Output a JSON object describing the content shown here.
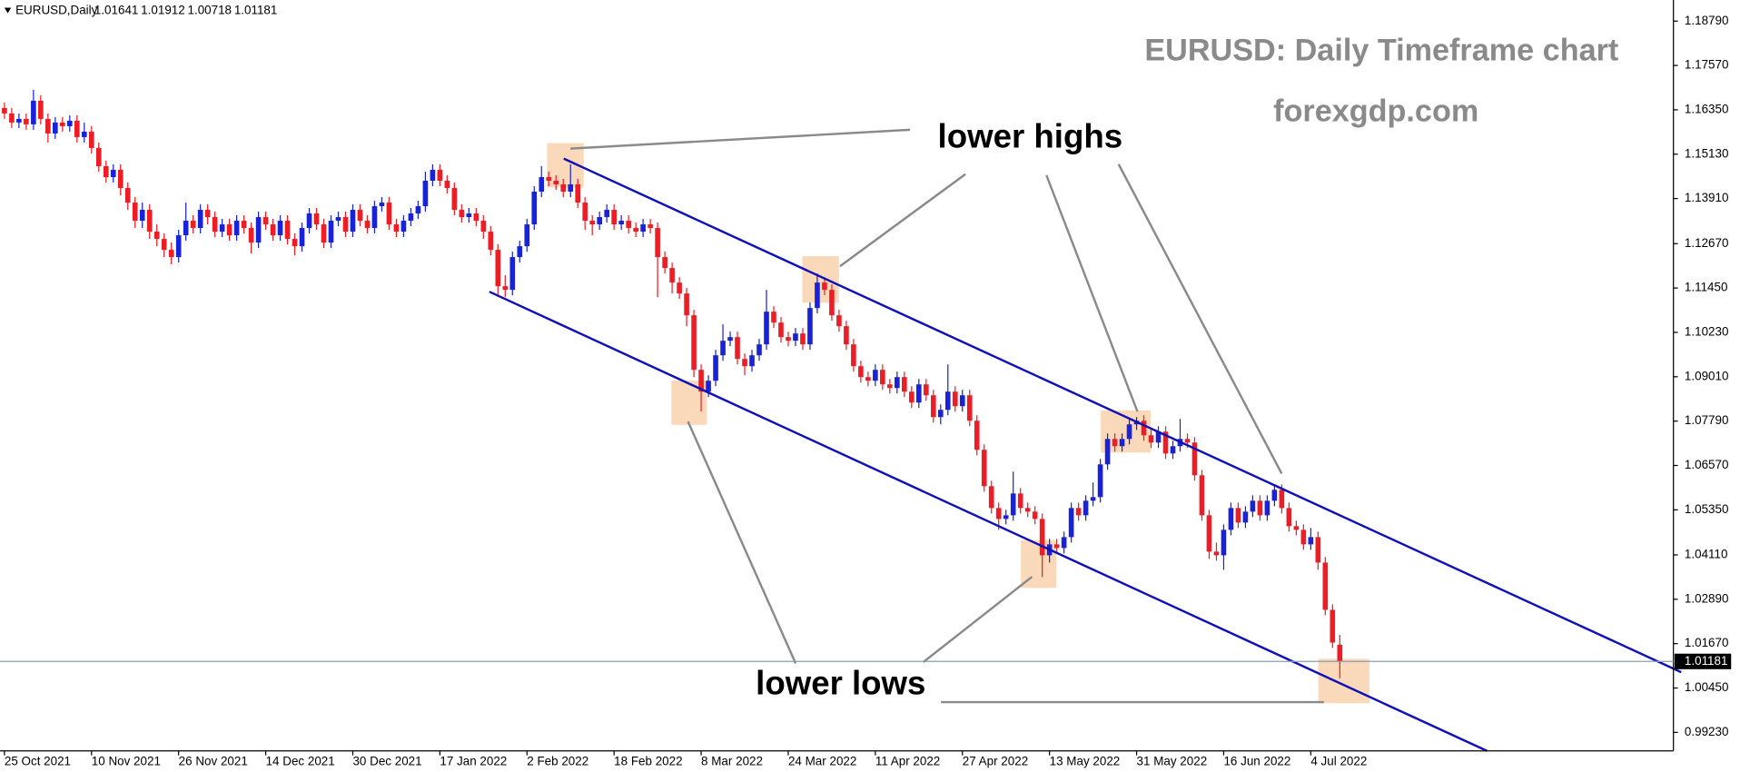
{
  "chart_data": {
    "type": "candlestick",
    "symbol": "EURUSD,Daily",
    "title": "EURUSD: Daily Timeframe chart",
    "subtitle": "forexgdp.com",
    "annotations": [
      "lower highs",
      "lower lows"
    ],
    "up_color": "#1a22d8",
    "down_color": "#ee1c25",
    "channel_color": "#1010b8",
    "ylim": [
      0.9872,
      1.1937
    ],
    "yticks": [
      {
        "value": 1.1879,
        "label": "1.18790"
      },
      {
        "value": 1.1757,
        "label": "1.17570"
      },
      {
        "value": 1.1635,
        "label": "1.16350"
      },
      {
        "value": 1.1513,
        "label": "1.15130"
      },
      {
        "value": 1.1391,
        "label": "1.13910"
      },
      {
        "value": 1.1267,
        "label": "1.12670"
      },
      {
        "value": 1.1145,
        "label": "1.11450"
      },
      {
        "value": 1.1023,
        "label": "1.10230"
      },
      {
        "value": 1.0901,
        "label": "1.09010"
      },
      {
        "value": 1.0779,
        "label": "1.07790"
      },
      {
        "value": 1.0657,
        "label": "1.06570"
      },
      {
        "value": 1.0535,
        "label": "1.05350"
      },
      {
        "value": 1.0411,
        "label": "1.04110"
      },
      {
        "value": 1.0289,
        "label": "1.02890"
      },
      {
        "value": 1.0167,
        "label": "1.01670"
      },
      {
        "value": 1.0045,
        "label": "1.00450"
      },
      {
        "value": 0.9923,
        "label": "0.99230"
      }
    ],
    "categories": [
      "25 Oct 2021",
      null,
      null,
      null,
      null,
      null,
      null,
      null,
      null,
      null,
      null,
      null,
      "10 Nov 2021",
      null,
      null,
      null,
      null,
      null,
      null,
      null,
      null,
      null,
      null,
      null,
      "26 Nov 2021",
      null,
      null,
      null,
      null,
      null,
      null,
      null,
      null,
      null,
      null,
      null,
      "14 Dec 2021",
      null,
      null,
      null,
      null,
      null,
      null,
      null,
      null,
      null,
      null,
      null,
      "30 Dec 2021",
      null,
      null,
      null,
      null,
      null,
      null,
      null,
      null,
      null,
      null,
      null,
      "17 Jan 2022",
      null,
      null,
      null,
      null,
      null,
      null,
      null,
      null,
      null,
      null,
      null,
      "2 Feb 2022",
      null,
      null,
      null,
      null,
      null,
      null,
      null,
      null,
      null,
      null,
      null,
      "18 Feb 2022",
      null,
      null,
      null,
      null,
      null,
      null,
      null,
      null,
      null,
      null,
      null,
      "8 Mar 2022",
      null,
      null,
      null,
      null,
      null,
      null,
      null,
      null,
      null,
      null,
      null,
      "24 Mar 2022",
      null,
      null,
      null,
      null,
      null,
      null,
      null,
      null,
      null,
      null,
      null,
      "11 Apr 2022",
      null,
      null,
      null,
      null,
      null,
      null,
      null,
      null,
      null,
      null,
      null,
      "27 Apr 2022",
      null,
      null,
      null,
      null,
      null,
      null,
      null,
      null,
      null,
      null,
      null,
      "13 May 2022",
      null,
      null,
      null,
      null,
      null,
      null,
      null,
      null,
      null,
      null,
      null,
      "31 May 2022",
      null,
      null,
      null,
      null,
      null,
      null,
      null,
      null,
      null,
      null,
      null,
      "16 Jun 2022",
      null,
      null,
      null,
      null,
      null,
      null,
      null,
      null,
      null,
      null,
      null,
      "4 Jul 2022",
      null,
      null,
      null,
      null
    ],
    "open": [
      1.164,
      1.1625,
      1.16,
      1.161,
      1.1595,
      1.166,
      1.161,
      1.157,
      1.16,
      1.159,
      1.1605,
      1.156,
      1.1575,
      1.153,
      1.148,
      1.145,
      1.147,
      1.142,
      1.138,
      1.133,
      1.136,
      1.13,
      1.128,
      1.125,
      1.123,
      1.129,
      1.133,
      1.131,
      1.136,
      1.134,
      1.13,
      1.132,
      1.129,
      1.133,
      1.131,
      1.127,
      1.134,
      1.132,
      1.129,
      1.133,
      1.128,
      1.126,
      1.131,
      1.135,
      1.132,
      1.127,
      1.133,
      1.134,
      1.13,
      1.136,
      1.133,
      1.131,
      1.137,
      1.138,
      1.132,
      1.13,
      1.133,
      1.135,
      1.137,
      1.144,
      1.147,
      1.144,
      1.142,
      1.136,
      1.134,
      1.135,
      1.133,
      1.13,
      1.125,
      1.115,
      1.114,
      1.123,
      1.126,
      1.132,
      1.141,
      1.145,
      1.144,
      1.143,
      1.141,
      1.143,
      1.138,
      1.133,
      1.132,
      1.134,
      1.136,
      1.132,
      1.133,
      1.131,
      1.13,
      1.132,
      1.131,
      1.123,
      1.12,
      1.116,
      1.113,
      1.107,
      1.092,
      1.086,
      1.089,
      1.096,
      1.1,
      1.101,
      1.095,
      1.093,
      1.096,
      1.099,
      1.108,
      1.105,
      1.101,
      1.1,
      1.102,
      1.099,
      1.109,
      1.116,
      1.114,
      1.107,
      1.104,
      1.099,
      1.093,
      1.09,
      1.089,
      1.092,
      1.088,
      1.087,
      1.09,
      1.086,
      1.083,
      1.088,
      1.085,
      1.079,
      1.081,
      1.086,
      1.082,
      1.085,
      1.078,
      1.07,
      1.06,
      1.054,
      1.051,
      1.052,
      1.058,
      1.054,
      1.053,
      1.051,
      1.041,
      1.044,
      1.043,
      1.046,
      1.054,
      1.052,
      1.056,
      1.057,
      1.066,
      1.073,
      1.071,
      1.073,
      1.077,
      1.078,
      1.074,
      1.072,
      1.075,
      1.069,
      1.071,
      1.073,
      1.072,
      1.063,
      1.052,
      1.042,
      1.041,
      1.048,
      1.054,
      1.05,
      1.053,
      1.056,
      1.052,
      1.056,
      1.059,
      1.054,
      1.049,
      1.048,
      1.044,
      1.046,
      1.039,
      1.026,
      1.01641
    ],
    "high": [
      1.1655,
      1.164,
      1.1625,
      1.1625,
      1.169,
      1.1675,
      1.1625,
      1.1615,
      1.1615,
      1.162,
      1.162,
      1.16,
      1.159,
      1.1545,
      1.1495,
      1.1485,
      1.1485,
      1.1435,
      1.1395,
      1.138,
      1.1375,
      1.132,
      1.1295,
      1.127,
      1.1305,
      1.138,
      1.1345,
      1.1375,
      1.1375,
      1.1355,
      1.1335,
      1.1335,
      1.1345,
      1.1345,
      1.1325,
      1.1355,
      1.1355,
      1.1335,
      1.1345,
      1.1345,
      1.1295,
      1.1325,
      1.1365,
      1.1365,
      1.1335,
      1.1345,
      1.1355,
      1.1355,
      1.1375,
      1.1375,
      1.1345,
      1.1385,
      1.1395,
      1.1395,
      1.1335,
      1.1345,
      1.1365,
      1.1385,
      1.1465,
      1.1485,
      1.1485,
      1.1455,
      1.1435,
      1.1375,
      1.1365,
      1.1365,
      1.1345,
      1.1315,
      1.1265,
      1.118,
      1.1245,
      1.1275,
      1.1335,
      1.1425,
      1.148,
      1.1465,
      1.1455,
      1.1445,
      1.1485,
      1.1445,
      1.1395,
      1.1345,
      1.1355,
      1.1375,
      1.1375,
      1.1345,
      1.1345,
      1.1325,
      1.1335,
      1.1335,
      1.1325,
      1.1245,
      1.1215,
      1.1175,
      1.1145,
      1.1085,
      1.0935,
      1.0905,
      1.0975,
      1.1045,
      1.1025,
      1.1025,
      1.0965,
      1.0975,
      1.1005,
      1.114,
      1.1095,
      1.1065,
      1.1025,
      1.1035,
      1.1035,
      1.1105,
      1.1185,
      1.1175,
      1.1155,
      1.1085,
      1.1055,
      1.1005,
      1.0945,
      1.0915,
      1.0935,
      1.0935,
      1.0895,
      1.0915,
      1.0915,
      1.0875,
      1.0895,
      1.0895,
      1.0865,
      1.0825,
      1.0935,
      1.0875,
      1.0865,
      1.0865,
      1.0795,
      1.0715,
      1.0615,
      1.0555,
      1.0535,
      1.064,
      1.0595,
      1.0555,
      1.0545,
      1.0525,
      1.0455,
      1.0455,
      1.0475,
      1.0555,
      1.0555,
      1.0575,
      1.061,
      1.0675,
      1.0745,
      1.0745,
      1.0745,
      1.0785,
      1.079,
      1.0795,
      1.0755,
      1.0765,
      1.0765,
      1.0725,
      1.0785,
      1.0745,
      1.0735,
      1.0645,
      1.0535,
      1.0445,
      1.0495,
      1.0555,
      1.0555,
      1.0545,
      1.0575,
      1.0575,
      1.0575,
      1.0605,
      1.0605,
      1.0555,
      1.0505,
      1.0495,
      1.0485,
      1.0475,
      1.0405,
      1.0275,
      1.01912
    ],
    "low": [
      1.161,
      1.1585,
      1.1585,
      1.158,
      1.158,
      1.1595,
      1.1545,
      1.1555,
      1.1575,
      1.1575,
      1.1545,
      1.1545,
      1.1515,
      1.1465,
      1.1435,
      1.1435,
      1.14,
      1.136,
      1.131,
      1.131,
      1.128,
      1.126,
      1.123,
      1.121,
      1.1215,
      1.1275,
      1.1295,
      1.1295,
      1.132,
      1.1285,
      1.1285,
      1.1275,
      1.1275,
      1.1295,
      1.124,
      1.1255,
      1.1305,
      1.1275,
      1.1275,
      1.1265,
      1.1235,
      1.1245,
      1.1295,
      1.1305,
      1.1255,
      1.1255,
      1.1315,
      1.1285,
      1.1285,
      1.1315,
      1.1295,
      1.1295,
      1.1355,
      1.1305,
      1.1285,
      1.1285,
      1.1315,
      1.1335,
      1.1355,
      1.1425,
      1.1425,
      1.1405,
      1.1345,
      1.1325,
      1.1325,
      1.1315,
      1.128,
      1.1235,
      1.112,
      1.112,
      1.1125,
      1.1215,
      1.1245,
      1.1305,
      1.1395,
      1.1425,
      1.1415,
      1.1395,
      1.1395,
      1.1365,
      1.1305,
      1.129,
      1.1305,
      1.1325,
      1.1305,
      1.1305,
      1.1295,
      1.1285,
      1.1285,
      1.1295,
      1.112,
      1.1185,
      1.113,
      1.1115,
      1.104,
      1.09,
      1.0805,
      1.0845,
      1.0875,
      1.0945,
      1.0985,
      1.0935,
      1.0905,
      1.0915,
      1.0945,
      1.0975,
      1.1035,
      1.0995,
      1.0985,
      1.0985,
      1.0975,
      1.0975,
      1.1075,
      1.1125,
      1.1055,
      1.1025,
      1.0975,
      1.0915,
      1.0885,
      1.0875,
      1.0875,
      1.0865,
      1.0855,
      1.0855,
      1.0845,
      1.0815,
      1.0815,
      1.0835,
      1.0775,
      1.077,
      1.0795,
      1.0805,
      1.0805,
      1.0765,
      1.0685,
      1.0585,
      1.0525,
      1.048,
      1.0495,
      1.0505,
      1.0525,
      1.0515,
      1.0495,
      1.035,
      1.039,
      1.0415,
      1.0415,
      1.0445,
      1.0505,
      1.0505,
      1.0545,
      1.0555,
      1.0645,
      1.0695,
      1.0695,
      1.0715,
      1.0755,
      1.0725,
      1.0705,
      1.0705,
      1.0675,
      1.0675,
      1.0695,
      1.0705,
      1.0615,
      1.0505,
      1.04,
      1.0395,
      1.037,
      1.0465,
      1.0485,
      1.0485,
      1.0515,
      1.0505,
      1.0505,
      1.0545,
      1.0525,
      1.0475,
      1.0465,
      1.0425,
      1.0425,
      1.037,
      1.0245,
      1.0155,
      1.00718
    ],
    "close": [
      1.1625,
      1.16,
      1.161,
      1.1595,
      1.166,
      1.161,
      1.157,
      1.16,
      1.159,
      1.1605,
      1.156,
      1.1575,
      1.153,
      1.148,
      1.145,
      1.147,
      1.142,
      1.138,
      1.133,
      1.136,
      1.13,
      1.128,
      1.125,
      1.123,
      1.129,
      1.133,
      1.131,
      1.136,
      1.134,
      1.13,
      1.132,
      1.129,
      1.133,
      1.131,
      1.127,
      1.134,
      1.132,
      1.129,
      1.133,
      1.128,
      1.126,
      1.131,
      1.135,
      1.132,
      1.127,
      1.133,
      1.134,
      1.13,
      1.136,
      1.133,
      1.131,
      1.137,
      1.138,
      1.132,
      1.13,
      1.133,
      1.135,
      1.137,
      1.144,
      1.147,
      1.144,
      1.142,
      1.136,
      1.134,
      1.135,
      1.133,
      1.13,
      1.125,
      1.115,
      1.114,
      1.123,
      1.126,
      1.132,
      1.141,
      1.145,
      1.144,
      1.143,
      1.141,
      1.143,
      1.138,
      1.133,
      1.132,
      1.134,
      1.136,
      1.132,
      1.133,
      1.131,
      1.13,
      1.132,
      1.131,
      1.123,
      1.12,
      1.116,
      1.113,
      1.107,
      1.092,
      1.086,
      1.089,
      1.096,
      1.1,
      1.101,
      1.095,
      1.093,
      1.096,
      1.099,
      1.108,
      1.105,
      1.101,
      1.1,
      1.102,
      1.099,
      1.109,
      1.116,
      1.114,
      1.107,
      1.104,
      1.099,
      1.093,
      1.09,
      1.089,
      1.092,
      1.088,
      1.087,
      1.09,
      1.086,
      1.083,
      1.088,
      1.085,
      1.079,
      1.081,
      1.086,
      1.082,
      1.085,
      1.078,
      1.07,
      1.06,
      1.054,
      1.051,
      1.052,
      1.058,
      1.054,
      1.053,
      1.051,
      1.041,
      1.044,
      1.043,
      1.046,
      1.054,
      1.052,
      1.056,
      1.057,
      1.066,
      1.073,
      1.071,
      1.073,
      1.077,
      1.078,
      1.074,
      1.072,
      1.075,
      1.069,
      1.071,
      1.073,
      1.072,
      1.063,
      1.052,
      1.042,
      1.041,
      1.048,
      1.054,
      1.05,
      1.053,
      1.056,
      1.052,
      1.056,
      1.059,
      1.054,
      1.049,
      1.048,
      1.044,
      1.046,
      1.039,
      1.026,
      1.017,
      1.01181
    ]
  }
}
